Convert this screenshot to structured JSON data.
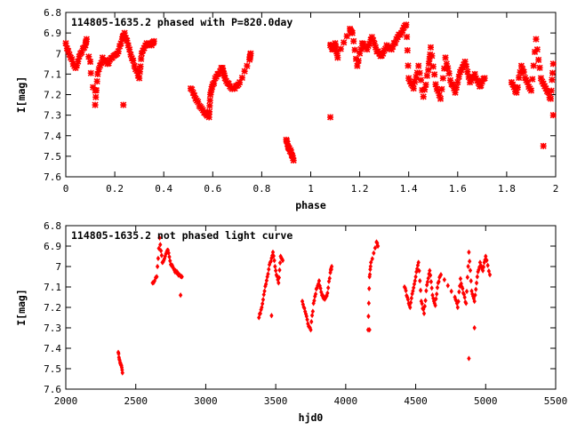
{
  "colors": {
    "points": "#ff0000",
    "axis": "#000000",
    "background": "#ffffff"
  },
  "chart_data": [
    {
      "type": "scatter",
      "title": "114805-1635.2 phased with P=820.0day",
      "xlabel": "phase",
      "ylabel": "I[mag]",
      "xlim": [
        0,
        2
      ],
      "ylim": [
        7.6,
        6.8
      ],
      "x_ticks": [
        0,
        0.2,
        0.4,
        0.6,
        0.8,
        1,
        1.2,
        1.4,
        1.6,
        1.8,
        2
      ],
      "x_tick_labels": [
        "0",
        "0.2",
        "0.4",
        "0.6",
        "0.8",
        "1",
        "1.2",
        "1.4",
        "1.6",
        "1.8",
        "2"
      ],
      "y_ticks": [
        6.8,
        6.9,
        7.0,
        7.1,
        7.2,
        7.3,
        7.4,
        7.5,
        7.6
      ],
      "y_tick_labels": [
        "6.8",
        "6.9",
        "7",
        "7.1",
        "7.2",
        "7.3",
        "7.4",
        "7.5",
        "7.6"
      ],
      "grid": false,
      "marker": "star",
      "segments": [
        [
          -0.02,
          6.94
        ],
        [
          0.0,
          6.95
        ],
        [
          0.02,
          7.02
        ],
        [
          0.04,
          7.07
        ],
        [
          0.06,
          7.0
        ],
        [
          0.08,
          6.96
        ],
        [
          0.085,
          6.93
        ],
        [
          0.12,
          7.25
        ],
        [
          0.13,
          7.1
        ],
        [
          0.15,
          7.02
        ],
        [
          0.17,
          7.05
        ],
        [
          0.19,
          7.02
        ],
        [
          0.21,
          7.0
        ],
        [
          0.23,
          6.93
        ],
        [
          0.24,
          6.9
        ],
        [
          0.26,
          6.98
        ],
        [
          0.28,
          7.06
        ],
        [
          0.3,
          7.12
        ],
        [
          0.31,
          7.0
        ],
        [
          0.33,
          6.95
        ],
        [
          0.35,
          6.96
        ],
        [
          0.36,
          6.94
        ],
        [
          0.51,
          7.17
        ],
        [
          0.53,
          7.22
        ],
        [
          0.55,
          7.26
        ],
        [
          0.57,
          7.29
        ],
        [
          0.585,
          7.31
        ],
        [
          0.59,
          7.2
        ],
        [
          0.6,
          7.15
        ],
        [
          0.62,
          7.1
        ],
        [
          0.64,
          7.07
        ],
        [
          0.65,
          7.12
        ],
        [
          0.67,
          7.16
        ],
        [
          0.69,
          7.17
        ],
        [
          0.71,
          7.14
        ],
        [
          0.75,
          7.03
        ],
        [
          0.755,
          7.0
        ],
        [
          0.9,
          7.42
        ],
        [
          0.91,
          7.46
        ],
        [
          0.92,
          7.48
        ],
        [
          0.93,
          7.52
        ]
      ],
      "segments_b": [
        [
          1.08,
          6.96
        ],
        [
          1.09,
          6.98
        ],
        [
          1.1,
          6.95
        ],
        [
          1.11,
          7.02
        ],
        [
          1.16,
          6.88
        ],
        [
          1.17,
          6.9
        ],
        [
          1.19,
          7.06
        ],
        [
          1.21,
          6.95
        ],
        [
          1.23,
          6.98
        ],
        [
          1.25,
          6.92
        ],
        [
          1.27,
          6.99
        ],
        [
          1.29,
          7.01
        ],
        [
          1.31,
          6.96
        ],
        [
          1.33,
          6.98
        ],
        [
          1.35,
          6.93
        ],
        [
          1.37,
          6.9
        ],
        [
          1.39,
          6.86
        ],
        [
          1.4,
          7.12
        ],
        [
          1.42,
          7.17
        ],
        [
          1.44,
          7.06
        ],
        [
          1.46,
          7.21
        ],
        [
          1.48,
          7.08
        ],
        [
          1.49,
          6.97
        ],
        [
          1.51,
          7.15
        ],
        [
          1.53,
          7.22
        ],
        [
          1.55,
          7.02
        ],
        [
          1.57,
          7.13
        ],
        [
          1.59,
          7.19
        ],
        [
          1.61,
          7.09
        ],
        [
          1.63,
          7.04
        ],
        [
          1.65,
          7.14
        ],
        [
          1.67,
          7.1
        ],
        [
          1.69,
          7.16
        ],
        [
          1.71,
          7.12
        ],
        [
          1.82,
          7.14
        ],
        [
          1.84,
          7.19
        ],
        [
          1.86,
          7.06
        ],
        [
          1.88,
          7.13
        ],
        [
          1.9,
          7.18
        ],
        [
          1.92,
          6.93
        ],
        [
          1.94,
          7.12
        ],
        [
          1.96,
          7.17
        ],
        [
          1.98,
          7.22
        ],
        [
          1.99,
          7.05
        ]
      ],
      "outliers": [
        [
          0.235,
          7.25
        ],
        [
          1.08,
          7.31
        ],
        [
          1.95,
          7.45
        ],
        [
          1.99,
          7.3
        ],
        [
          0.12,
          7.18
        ],
        [
          0.1,
          7.04
        ]
      ]
    },
    {
      "type": "scatter",
      "title": "114805-1635.2 not phased light curve",
      "xlabel": "hjd0",
      "ylabel": "I[mag]",
      "xlim": [
        2000,
        5500
      ],
      "ylim": [
        7.6,
        6.8
      ],
      "x_ticks": [
        2000,
        2500,
        3000,
        3500,
        4000,
        4500,
        5000,
        5500
      ],
      "x_tick_labels": [
        "2000",
        "2500",
        "3000",
        "3500",
        "4000",
        "4500",
        "5000",
        "5500"
      ],
      "y_ticks": [
        6.8,
        6.9,
        7.0,
        7.1,
        7.2,
        7.3,
        7.4,
        7.5,
        7.6
      ],
      "y_tick_labels": [
        "6.8",
        "6.9",
        "7",
        "7.1",
        "7.2",
        "7.3",
        "7.4",
        "7.5",
        "7.6"
      ],
      "grid": false,
      "marker": "diamond",
      "segments": [
        [
          2375,
          7.42
        ],
        [
          2385,
          7.46
        ],
        [
          2395,
          7.48
        ],
        [
          2405,
          7.52
        ],
        [
          2620,
          7.08
        ],
        [
          2650,
          7.05
        ],
        [
          2670,
          6.86
        ],
        [
          2690,
          6.98
        ],
        [
          2710,
          6.95
        ],
        [
          2730,
          6.92
        ],
        [
          2750,
          6.99
        ],
        [
          2770,
          7.01
        ],
        [
          2790,
          7.03
        ],
        [
          2810,
          7.04
        ],
        [
          2830,
          7.05
        ],
        [
          3380,
          7.25
        ],
        [
          3400,
          7.2
        ],
        [
          3420,
          7.12
        ],
        [
          3440,
          7.05
        ],
        [
          3460,
          6.98
        ],
        [
          3480,
          6.93
        ],
        [
          3500,
          7.02
        ],
        [
          3520,
          7.08
        ],
        [
          3535,
          6.95
        ],
        [
          3550,
          6.97
        ],
        [
          3690,
          7.17
        ],
        [
          3710,
          7.22
        ],
        [
          3730,
          7.28
        ],
        [
          3750,
          7.31
        ],
        [
          3770,
          7.18
        ],
        [
          3790,
          7.11
        ],
        [
          3810,
          7.07
        ],
        [
          3830,
          7.14
        ],
        [
          3850,
          7.16
        ],
        [
          3870,
          7.13
        ],
        [
          3890,
          7.03
        ],
        [
          3900,
          7.0
        ],
        [
          4160,
          7.31
        ],
        [
          4170,
          7.05
        ],
        [
          4180,
          6.98
        ],
        [
          4220,
          6.88
        ],
        [
          4230,
          6.9
        ],
        [
          4420,
          7.1
        ],
        [
          4440,
          7.15
        ],
        [
          4460,
          7.2
        ],
        [
          4480,
          7.12
        ],
        [
          4500,
          7.05
        ],
        [
          4520,
          6.98
        ],
        [
          4540,
          7.17
        ],
        [
          4560,
          7.23
        ],
        [
          4580,
          7.09
        ],
        [
          4600,
          7.02
        ],
        [
          4620,
          7.14
        ],
        [
          4640,
          7.19
        ],
        [
          4660,
          7.08
        ],
        [
          4680,
          7.04
        ],
        [
          4780,
          7.15
        ],
        [
          4800,
          7.2
        ],
        [
          4820,
          7.06
        ],
        [
          4840,
          7.13
        ],
        [
          4860,
          7.18
        ],
        [
          4880,
          6.93
        ],
        [
          4900,
          7.12
        ],
        [
          4920,
          7.17
        ],
        [
          4940,
          7.05
        ],
        [
          4960,
          6.98
        ],
        [
          4980,
          7.02
        ],
        [
          5000,
          6.95
        ],
        [
          5030,
          7.04
        ]
      ],
      "outliers": [
        [
          4170,
          7.31
        ],
        [
          4880,
          7.45
        ],
        [
          4920,
          7.3
        ],
        [
          2820,
          7.14
        ],
        [
          3470,
          7.24
        ]
      ]
    }
  ]
}
